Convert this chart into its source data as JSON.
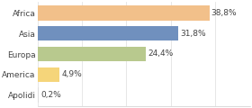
{
  "categories": [
    "Africa",
    "Asia",
    "Europa",
    "America",
    "Apolidi"
  ],
  "values": [
    38.8,
    31.8,
    24.4,
    4.9,
    0.2
  ],
  "labels": [
    "38,8%",
    "31,8%",
    "24,4%",
    "4,9%",
    "0,2%"
  ],
  "bar_colors": [
    "#f2c08a",
    "#7090be",
    "#b8c98e",
    "#f5d57a",
    "#dddddd"
  ],
  "background_color": "#ffffff",
  "xlim": [
    0,
    48
  ],
  "label_fontsize": 6.5,
  "tick_fontsize": 6.5,
  "grid_color": "#dddddd",
  "bar_height": 0.72
}
